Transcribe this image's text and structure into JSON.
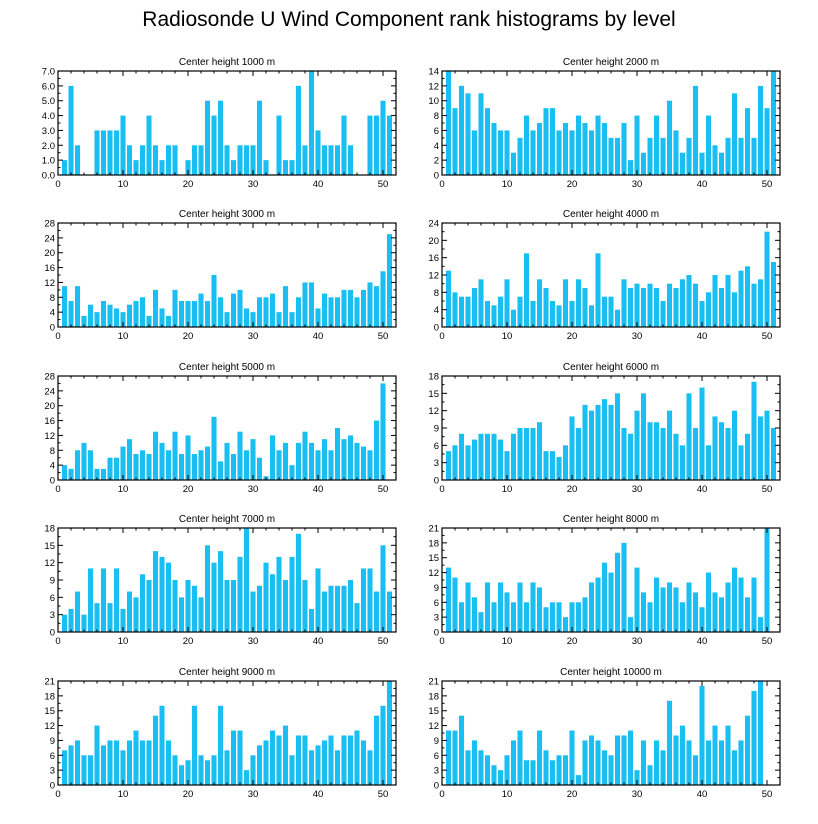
{
  "title": "Radiosonde U Wind Component rank histograms by level",
  "colors": {
    "bar": "#19bff2",
    "axis": "#000000"
  },
  "chart_data": [
    {
      "type": "bar",
      "title": "Center height 1000 m",
      "ylim": [
        0,
        7
      ],
      "yticks": [
        "0.0",
        "1.0",
        "2.0",
        "3.0",
        "4.0",
        "5.0",
        "6.0",
        "7.0"
      ],
      "xticks": [
        0,
        10,
        20,
        30,
        40,
        50
      ],
      "xlim": [
        0,
        52
      ],
      "values": [
        1,
        6,
        2,
        0,
        0,
        3,
        3,
        3,
        3,
        4,
        2,
        1,
        2,
        4,
        2,
        1,
        2,
        2,
        0,
        1,
        2,
        2,
        5,
        4,
        5,
        2,
        1,
        2,
        2,
        2,
        5,
        1,
        0,
        4,
        1,
        1,
        6,
        2,
        7,
        3,
        2,
        2,
        2,
        4,
        2,
        0,
        0,
        4,
        4,
        5,
        4
      ]
    },
    {
      "type": "bar",
      "title": "Center height 2000 m",
      "ylim": [
        0,
        14
      ],
      "yticks": [
        "0",
        "2",
        "4",
        "6",
        "8",
        "10",
        "12",
        "14"
      ],
      "xticks": [
        0,
        10,
        20,
        30,
        40,
        50
      ],
      "xlim": [
        0,
        52
      ],
      "values": [
        14,
        9,
        12,
        11,
        6,
        11,
        9,
        7,
        6,
        6,
        3,
        5,
        8,
        6,
        7,
        9,
        9,
        6,
        7,
        6,
        8,
        7,
        6,
        8,
        7,
        5,
        5,
        7,
        2,
        8,
        3,
        5,
        8,
        5,
        10,
        6,
        3,
        5,
        12,
        3,
        8,
        4,
        3,
        5,
        11,
        5,
        9,
        5,
        12,
        9,
        14
      ]
    },
    {
      "type": "bar",
      "title": "Center height 3000 m",
      "ylim": [
        0,
        28
      ],
      "yticks": [
        "0",
        "4",
        "8",
        "12",
        "16",
        "20",
        "24",
        "28"
      ],
      "xticks": [
        0,
        10,
        20,
        30,
        40,
        50
      ],
      "xlim": [
        0,
        52
      ],
      "values": [
        11,
        7,
        11,
        3,
        6,
        4,
        7,
        6,
        5,
        4,
        6,
        7,
        8,
        3,
        10,
        5,
        3,
        10,
        7,
        7,
        7,
        9,
        7,
        14,
        8,
        4,
        9,
        10,
        5,
        4,
        8,
        8,
        9,
        4,
        11,
        4,
        8,
        12,
        12,
        5,
        9,
        8,
        8,
        10,
        10,
        8,
        10,
        12,
        11,
        15,
        25
      ]
    },
    {
      "type": "bar",
      "title": "Center height 4000 m",
      "ylim": [
        0,
        24
      ],
      "yticks": [
        "0",
        "4",
        "8",
        "12",
        "16",
        "20",
        "24"
      ],
      "xticks": [
        0,
        10,
        20,
        30,
        40,
        50
      ],
      "xlim": [
        0,
        52
      ],
      "values": [
        13,
        8,
        7,
        7,
        9,
        11,
        6,
        5,
        7,
        11,
        4,
        7,
        17,
        6,
        11,
        9,
        6,
        5,
        11,
        6,
        11,
        9,
        5,
        17,
        7,
        7,
        4,
        11,
        9,
        10,
        9,
        10,
        9,
        6,
        10,
        9,
        11,
        12,
        10,
        6,
        8,
        12,
        9,
        12,
        8,
        13,
        14,
        10,
        11,
        22,
        15
      ]
    },
    {
      "type": "bar",
      "title": "Center height 5000 m",
      "ylim": [
        0,
        28
      ],
      "yticks": [
        "0",
        "4",
        "8",
        "12",
        "16",
        "20",
        "24",
        "28"
      ],
      "xticks": [
        0,
        10,
        20,
        30,
        40,
        50
      ],
      "xlim": [
        0,
        52
      ],
      "values": [
        4,
        3,
        8,
        10,
        8,
        3,
        3,
        6,
        6,
        9,
        11,
        7,
        8,
        7,
        13,
        10,
        8,
        13,
        7,
        12,
        7,
        8,
        9,
        17,
        5,
        10,
        7,
        13,
        8,
        11,
        6,
        1,
        12,
        8,
        10,
        4,
        10,
        13,
        10,
        8,
        11,
        8,
        14,
        11,
        12,
        10,
        9,
        8,
        16,
        26,
        0
      ]
    },
    {
      "type": "bar",
      "title": "Center height 6000 m",
      "ylim": [
        0,
        18
      ],
      "yticks": [
        "0",
        "3",
        "6",
        "9",
        "12",
        "15",
        "18"
      ],
      "xticks": [
        0,
        10,
        20,
        30,
        40,
        50
      ],
      "xlim": [
        0,
        52
      ],
      "values": [
        5,
        6,
        8,
        6,
        7,
        8,
        8,
        8,
        7,
        5,
        8,
        9,
        9,
        9,
        10,
        5,
        5,
        4,
        6,
        11,
        9,
        13,
        12,
        13,
        14,
        13,
        15,
        9,
        8,
        12,
        15,
        10,
        10,
        9,
        12,
        8,
        6,
        15,
        9,
        16,
        6,
        11,
        10,
        9,
        12,
        6,
        8,
        17,
        11,
        12,
        9
      ]
    },
    {
      "type": "bar",
      "title": "Center height 7000 m",
      "ylim": [
        0,
        18
      ],
      "yticks": [
        "0",
        "3",
        "6",
        "9",
        "12",
        "15",
        "18"
      ],
      "xticks": [
        0,
        10,
        20,
        30,
        40,
        50
      ],
      "xlim": [
        0,
        52
      ],
      "values": [
        3,
        4,
        7,
        3,
        11,
        5,
        11,
        5,
        11,
        4,
        7,
        6,
        10,
        9,
        14,
        13,
        12,
        9,
        6,
        9,
        8,
        6,
        15,
        12,
        14,
        9,
        9,
        13,
        18,
        7,
        8,
        12,
        10,
        13,
        9,
        13,
        17,
        9,
        4,
        11,
        7,
        8,
        8,
        8,
        9,
        5,
        11,
        11,
        7,
        15,
        7
      ]
    },
    {
      "type": "bar",
      "title": "Center height 8000 m",
      "ylim": [
        0,
        21
      ],
      "yticks": [
        "0",
        "3",
        "6",
        "9",
        "12",
        "15",
        "18",
        "21"
      ],
      "xticks": [
        0,
        10,
        20,
        30,
        40,
        50
      ],
      "xlim": [
        0,
        52
      ],
      "values": [
        13,
        11,
        6,
        10,
        7,
        4,
        10,
        6,
        10,
        8,
        6,
        10,
        6,
        10,
        9,
        5,
        6,
        6,
        3,
        6,
        6,
        7,
        10,
        11,
        14,
        12,
        16,
        18,
        3,
        13,
        8,
        6,
        11,
        9,
        10,
        9,
        6,
        10,
        8,
        5,
        12,
        8,
        7,
        10,
        13,
        11,
        7,
        11,
        3,
        21,
        0
      ]
    },
    {
      "type": "bar",
      "title": "Center height 9000 m",
      "ylim": [
        0,
        21
      ],
      "yticks": [
        "0",
        "3",
        "6",
        "9",
        "12",
        "15",
        "18",
        "21"
      ],
      "xticks": [
        0,
        10,
        20,
        30,
        40,
        50
      ],
      "xlim": [
        0,
        52
      ],
      "values": [
        7,
        8,
        9,
        6,
        6,
        12,
        8,
        9,
        9,
        7,
        9,
        11,
        9,
        9,
        14,
        16,
        9,
        6,
        4,
        5,
        16,
        6,
        5,
        6,
        16,
        7,
        11,
        11,
        3,
        6,
        8,
        9,
        11,
        10,
        12,
        6,
        10,
        10,
        7,
        8,
        9,
        10,
        7,
        10,
        10,
        11,
        9,
        7,
        14,
        16,
        21
      ]
    },
    {
      "type": "bar",
      "title": "Center height 10000 m",
      "ylim": [
        0,
        21
      ],
      "yticks": [
        "0",
        "3",
        "6",
        "9",
        "12",
        "15",
        "18",
        "21"
      ],
      "xticks": [
        0,
        10,
        20,
        30,
        40,
        50
      ],
      "xlim": [
        0,
        52
      ],
      "values": [
        11,
        11,
        14,
        7,
        9,
        7,
        6,
        4,
        3,
        6,
        9,
        11,
        5,
        5,
        11,
        7,
        5,
        6,
        6,
        11,
        2,
        9,
        10,
        9,
        7,
        6,
        10,
        10,
        11,
        3,
        9,
        4,
        9,
        7,
        17,
        10,
        12,
        9,
        6,
        20,
        9,
        12,
        9,
        12,
        7,
        9,
        14,
        19,
        21,
        0,
        0
      ]
    }
  ]
}
